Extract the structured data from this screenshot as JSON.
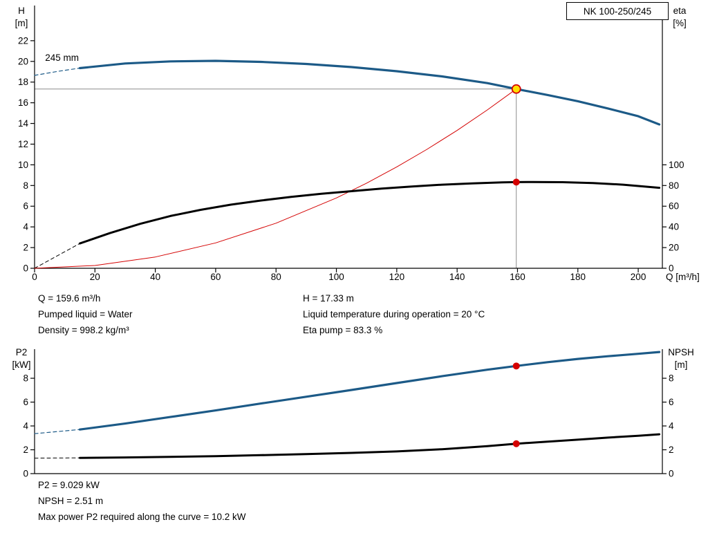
{
  "readouts": {
    "flow": "Q = 159.6 m³/h",
    "pumped_liquid": "Pumped liquid = Water",
    "density": "Density = 998.2 kg/m³",
    "head": "H = 17.33 m",
    "liquid_temperature": "Liquid temperature during operation = 20 °C",
    "eta_pump": "Eta pump = 83.3 %",
    "p2": "P2 = 9.029 kW",
    "npsh": "NPSH = 2.51 m",
    "max_power": "Max power P2 required along the curve = 10.2 kW"
  },
  "chart_data": [
    {
      "type": "line",
      "title": "NK 100-250/245",
      "xlim": [
        0,
        208
      ],
      "x_ticks": [
        0,
        20,
        40,
        60,
        80,
        100,
        120,
        140,
        160,
        180,
        200
      ],
      "x_axis_label": "Q [m³/h]",
      "left_axis": {
        "title_lines": [
          "H",
          "[m]"
        ],
        "range": [
          0,
          25.4
        ],
        "ticks": [
          0,
          2,
          4,
          6,
          8,
          10,
          12,
          14,
          16,
          18,
          20,
          22
        ]
      },
      "right_axis": {
        "title_lines": [
          "eta",
          "[%]"
        ],
        "range": [
          0,
          254
        ],
        "ticks": [
          0,
          20,
          40,
          60,
          80,
          100
        ]
      },
      "crosshair": {
        "q": 159.6,
        "h": 17.33
      },
      "annotations": [
        {
          "text": "245 mm",
          "q": 3.5,
          "v": 20.05,
          "axis": "left"
        }
      ],
      "series": [
        {
          "name": "head-curve-extension",
          "axis": "left",
          "color": "#1c5a87",
          "width": 1.2,
          "dash": "5,4",
          "points": [
            [
              0,
              18.65
            ],
            [
              8,
              19.05
            ],
            [
              15,
              19.35
            ]
          ]
        },
        {
          "name": "efficiency-curve-extension",
          "axis": "right",
          "color": "#000000",
          "width": 1,
          "dash": "5,4",
          "points": [
            [
              0,
              0
            ],
            [
              15,
              24
            ]
          ]
        },
        {
          "name": "system-curve",
          "axis": "left",
          "color": "#d40000",
          "width": 1,
          "points": [
            [
              0,
              0
            ],
            [
              20,
              0.27
            ],
            [
              40,
              1.09
            ],
            [
              60,
              2.45
            ],
            [
              80,
              4.36
            ],
            [
              100,
              6.8
            ],
            [
              110,
              8.23
            ],
            [
              120,
              9.8
            ],
            [
              130,
              11.5
            ],
            [
              140,
              13.33
            ],
            [
              150,
              15.31
            ],
            [
              159.6,
              17.33
            ]
          ]
        },
        {
          "name": "head-curve",
          "axis": "left",
          "color": "#1c5a87",
          "width": 3.2,
          "points": [
            [
              15,
              19.35
            ],
            [
              30,
              19.8
            ],
            [
              45,
              20.0
            ],
            [
              60,
              20.05
            ],
            [
              75,
              19.95
            ],
            [
              90,
              19.75
            ],
            [
              105,
              19.45
            ],
            [
              120,
              19.05
            ],
            [
              135,
              18.55
            ],
            [
              150,
              17.9
            ],
            [
              159.6,
              17.33
            ],
            [
              170,
              16.75
            ],
            [
              180,
              16.15
            ],
            [
              190,
              15.45
            ],
            [
              200,
              14.7
            ],
            [
              207,
              13.9
            ]
          ]
        },
        {
          "name": "efficiency-curve",
          "axis": "right",
          "color": "#000000",
          "width": 3,
          "points": [
            [
              15,
              24
            ],
            [
              25,
              34
            ],
            [
              35,
              43
            ],
            [
              45,
              50.5
            ],
            [
              55,
              56.5
            ],
            [
              65,
              61.5
            ],
            [
              75,
              65.5
            ],
            [
              85,
              69
            ],
            [
              95,
              72
            ],
            [
              105,
              74.5
            ],
            [
              115,
              77
            ],
            [
              125,
              79
            ],
            [
              135,
              80.8
            ],
            [
              145,
              82
            ],
            [
              155,
              83
            ],
            [
              159.6,
              83.3
            ],
            [
              165,
              83.4
            ],
            [
              175,
              83.2
            ],
            [
              185,
              82.4
            ],
            [
              195,
              80.8
            ],
            [
              207,
              77.8
            ]
          ]
        }
      ],
      "markers": [
        {
          "name": "duty-point",
          "q": 159.6,
          "v": 17.33,
          "axis": "left",
          "fill": "#ffdf00",
          "stroke": "#d40000",
          "r": 6,
          "stroke_width": 1.8
        },
        {
          "name": "efficiency-point",
          "q": 159.6,
          "v": 83.3,
          "axis": "right",
          "fill": "#d40000",
          "stroke": "#d40000",
          "r": 4.5,
          "stroke_width": 1
        }
      ]
    },
    {
      "type": "line",
      "title": "",
      "xlim": [
        0,
        208
      ],
      "x_ticks": [],
      "x_axis_label": "",
      "left_axis": {
        "title_lines": [
          "P2",
          "[kW]"
        ],
        "range": [
          0,
          10.44
        ],
        "ticks": [
          0,
          2,
          4,
          6,
          8
        ]
      },
      "right_axis": {
        "title_lines": [
          "NPSH",
          "[m]"
        ],
        "range": [
          0,
          10.44
        ],
        "ticks": [
          0,
          2,
          4,
          6,
          8
        ]
      },
      "annotations": [],
      "series": [
        {
          "name": "p2-curve-extension",
          "axis": "left",
          "color": "#1c5a87",
          "width": 1.2,
          "dash": "5,4",
          "points": [
            [
              0,
              3.35
            ],
            [
              15,
              3.7
            ]
          ]
        },
        {
          "name": "npsh-curve-extension",
          "axis": "right",
          "color": "#000000",
          "width": 1,
          "dash": "5,4",
          "points": [
            [
              0,
              1.3
            ],
            [
              15,
              1.32
            ]
          ]
        },
        {
          "name": "p2-curve",
          "axis": "left",
          "color": "#1c5a87",
          "width": 3.2,
          "points": [
            [
              15,
              3.7
            ],
            [
              30,
              4.2
            ],
            [
              45,
              4.75
            ],
            [
              60,
              5.3
            ],
            [
              75,
              5.88
            ],
            [
              90,
              6.45
            ],
            [
              105,
              7.02
            ],
            [
              120,
              7.6
            ],
            [
              135,
              8.17
            ],
            [
              150,
              8.72
            ],
            [
              159.6,
              9.03
            ],
            [
              170,
              9.35
            ],
            [
              180,
              9.62
            ],
            [
              190,
              9.85
            ],
            [
              200,
              10.05
            ],
            [
              207,
              10.2
            ]
          ]
        },
        {
          "name": "npsh-curve",
          "axis": "right",
          "color": "#000000",
          "width": 3,
          "points": [
            [
              15,
              1.32
            ],
            [
              30,
              1.36
            ],
            [
              45,
              1.41
            ],
            [
              60,
              1.47
            ],
            [
              75,
              1.55
            ],
            [
              90,
              1.64
            ],
            [
              105,
              1.74
            ],
            [
              120,
              1.86
            ],
            [
              135,
              2.05
            ],
            [
              150,
              2.3
            ],
            [
              159.6,
              2.51
            ],
            [
              170,
              2.68
            ],
            [
              180,
              2.85
            ],
            [
              190,
              3.02
            ],
            [
              200,
              3.18
            ],
            [
              207,
              3.3
            ]
          ]
        }
      ],
      "markers": [
        {
          "name": "p2-point",
          "q": 159.6,
          "v": 9.029,
          "axis": "left",
          "fill": "#d40000",
          "stroke": "#d40000",
          "r": 4.5,
          "stroke_width": 1
        },
        {
          "name": "npsh-point",
          "q": 159.6,
          "v": 2.51,
          "axis": "right",
          "fill": "#d40000",
          "stroke": "#d40000",
          "r": 4.5,
          "stroke_width": 1
        }
      ]
    }
  ]
}
